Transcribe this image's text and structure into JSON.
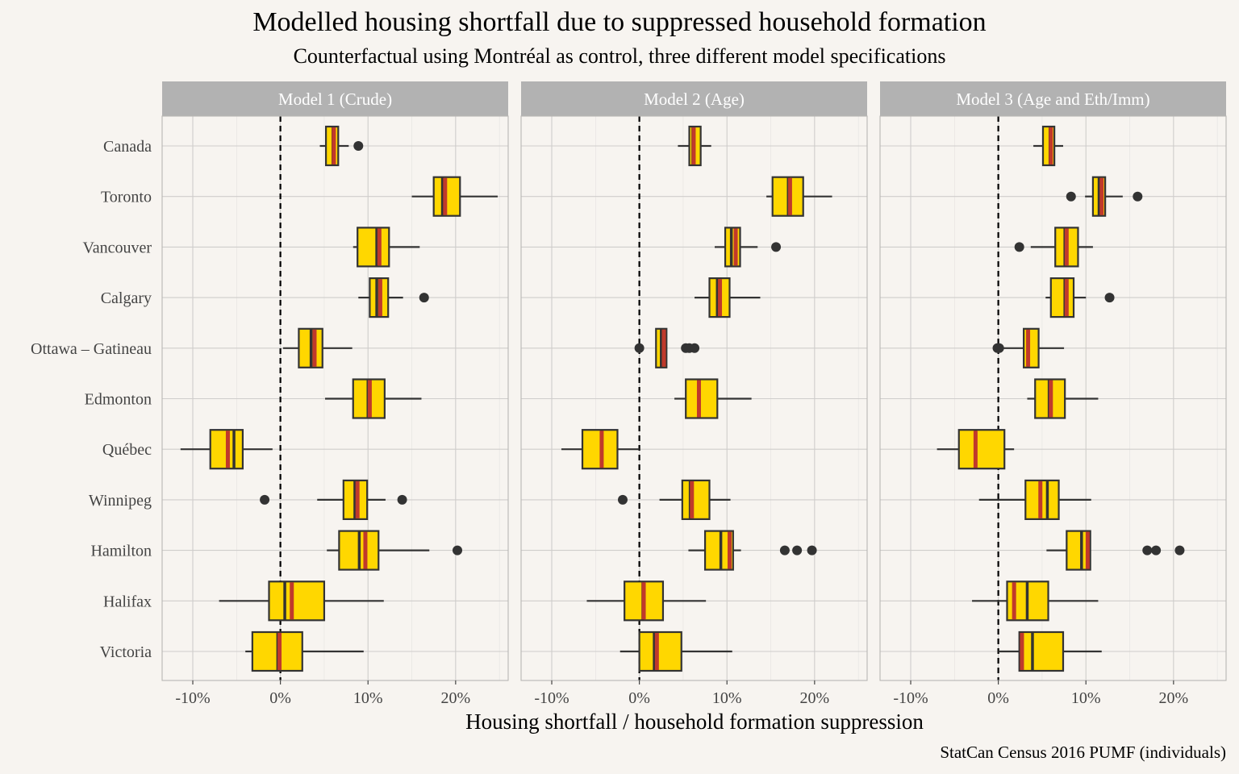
{
  "chart_data": {
    "type": "boxplot",
    "title": "Modelled housing shortfall due to suppressed household formation",
    "subtitle": "Counterfactual using Montréal as control, three different model specifications",
    "xlabel": "Housing shortfall / household formation suppression",
    "caption": "StatCan Census 2016 PUMF (individuals)",
    "xlim": [
      -13.5,
      26
    ],
    "x_ticks": [
      -10,
      0,
      10,
      20
    ],
    "x_tick_labels": [
      "-10%",
      "0%",
      "10%",
      "20%"
    ],
    "reference_line": 0,
    "box_fill": "#ffd700",
    "estimate_color": "#c0392b",
    "categories": [
      "Canada",
      "Toronto",
      "Vancouver",
      "Calgary",
      "Ottawa – Gatineau",
      "Edmonton",
      "Québec",
      "Winnipeg",
      "Hamilton",
      "Halifax",
      "Victoria"
    ],
    "panels": [
      {
        "name": "Model 1 (Crude)",
        "boxes": [
          {
            "min": 4.5,
            "q1": 5.2,
            "median": 6.0,
            "q3": 6.6,
            "max": 7.8,
            "estimate": 6.1,
            "outliers": [
              8.9
            ]
          },
          {
            "min": 15.0,
            "q1": 17.5,
            "median": 18.5,
            "q3": 20.5,
            "max": 24.8,
            "estimate": 18.8,
            "outliers": []
          },
          {
            "min": 8.3,
            "q1": 8.8,
            "median": 11.0,
            "q3": 12.4,
            "max": 15.9,
            "estimate": 11.3,
            "outliers": []
          },
          {
            "min": 8.9,
            "q1": 10.2,
            "median": 11.0,
            "q3": 12.3,
            "max": 14.0,
            "estimate": 11.4,
            "outliers": [
              16.4
            ]
          },
          {
            "min": 0.3,
            "q1": 2.1,
            "median": 3.5,
            "q3": 4.8,
            "max": 8.2,
            "estimate": 3.9,
            "outliers": []
          },
          {
            "min": 5.1,
            "q1": 8.3,
            "median": 10.0,
            "q3": 11.9,
            "max": 16.1,
            "estimate": 10.2,
            "outliers": []
          },
          {
            "min": -11.4,
            "q1": -8.0,
            "median": -5.3,
            "q3": -4.3,
            "max": -0.9,
            "estimate": -6.0,
            "outliers": []
          },
          {
            "min": 4.2,
            "q1": 7.2,
            "median": 8.5,
            "q3": 9.9,
            "max": 12.0,
            "estimate": 8.8,
            "outliers": [
              -1.8,
              13.9
            ]
          },
          {
            "min": 5.3,
            "q1": 6.7,
            "median": 9.0,
            "q3": 11.2,
            "max": 17.0,
            "estimate": 9.7,
            "outliers": [
              20.2
            ]
          },
          {
            "min": -7.0,
            "q1": -1.3,
            "median": 0.5,
            "q3": 5.0,
            "max": 11.8,
            "estimate": 1.3,
            "outliers": []
          },
          {
            "min": -4.0,
            "q1": -3.2,
            "median": -0.3,
            "q3": 2.5,
            "max": 9.5,
            "estimate": -0.1,
            "outliers": []
          }
        ]
      },
      {
        "name": "Model 2 (Age)",
        "boxes": [
          {
            "min": 4.4,
            "q1": 5.7,
            "median": 6.1,
            "q3": 7.0,
            "max": 8.2,
            "estimate": 6.2,
            "outliers": []
          },
          {
            "min": 14.5,
            "q1": 15.2,
            "median": 17.0,
            "q3": 18.7,
            "max": 22.0,
            "estimate": 17.2,
            "outliers": []
          },
          {
            "min": 8.6,
            "q1": 9.8,
            "median": 10.5,
            "q3": 11.5,
            "max": 13.5,
            "estimate": 11.0,
            "outliers": [
              15.6
            ]
          },
          {
            "min": 6.3,
            "q1": 8.0,
            "median": 8.9,
            "q3": 10.3,
            "max": 13.8,
            "estimate": 9.2,
            "outliers": []
          },
          {
            "min": 1.9,
            "q1": 1.9,
            "median": 2.5,
            "q3": 3.1,
            "max": 3.1,
            "estimate": 2.8,
            "outliers": [
              0.0,
              5.3,
              5.7,
              6.3
            ]
          },
          {
            "min": 4.0,
            "q1": 5.3,
            "median": 6.8,
            "q3": 8.9,
            "max": 12.8,
            "estimate": 6.8,
            "outliers": []
          },
          {
            "min": -8.9,
            "q1": -6.5,
            "median": -4.3,
            "q3": -2.5,
            "max": 0.0,
            "estimate": -4.3,
            "outliers": []
          },
          {
            "min": 2.3,
            "q1": 4.9,
            "median": 5.8,
            "q3": 8.0,
            "max": 10.4,
            "estimate": 6.0,
            "outliers": [
              -1.9
            ]
          },
          {
            "min": 5.6,
            "q1": 7.5,
            "median": 9.3,
            "q3": 10.7,
            "max": 11.6,
            "estimate": 10.3,
            "outliers": [
              16.6,
              18.0,
              19.7
            ]
          },
          {
            "min": -6.0,
            "q1": -1.7,
            "median": 0.4,
            "q3": 2.7,
            "max": 7.6,
            "estimate": 0.5,
            "outliers": []
          },
          {
            "min": -2.2,
            "q1": 0.0,
            "median": 1.7,
            "q3": 4.8,
            "max": 10.6,
            "estimate": 2.0,
            "outliers": []
          }
        ]
      },
      {
        "name": "Model 3 (Age and Eth/Imm)",
        "boxes": [
          {
            "min": 4.0,
            "q1": 5.1,
            "median": 5.9,
            "q3": 6.4,
            "max": 7.4,
            "estimate": 6.0,
            "outliers": []
          },
          {
            "min": 9.9,
            "q1": 10.8,
            "median": 11.5,
            "q3": 12.2,
            "max": 14.2,
            "estimate": 11.8,
            "outliers": [
              8.3,
              15.9
            ]
          },
          {
            "min": 3.7,
            "q1": 6.5,
            "median": 7.6,
            "q3": 9.1,
            "max": 10.8,
            "estimate": 7.8,
            "outliers": [
              2.4
            ]
          },
          {
            "min": 5.4,
            "q1": 6.0,
            "median": 7.6,
            "q3": 8.6,
            "max": 10.0,
            "estimate": 7.8,
            "outliers": [
              12.7
            ]
          },
          {
            "min": 0.2,
            "q1": 2.9,
            "median": 3.4,
            "q3": 4.6,
            "max": 7.5,
            "estimate": 3.4,
            "outliers": [
              -0.1,
              0.1
            ]
          },
          {
            "min": 3.3,
            "q1": 4.2,
            "median": 5.8,
            "q3": 7.6,
            "max": 11.4,
            "estimate": 6.0,
            "outliers": []
          },
          {
            "min": -7.0,
            "q1": -4.5,
            "median": -2.6,
            "q3": 0.7,
            "max": 1.8,
            "estimate": -2.6,
            "outliers": []
          },
          {
            "min": -2.2,
            "q1": 3.1,
            "median": 5.6,
            "q3": 6.9,
            "max": 10.6,
            "estimate": 4.8,
            "outliers": []
          },
          {
            "min": 5.5,
            "q1": 7.8,
            "median": 9.5,
            "q3": 10.5,
            "max": 10.5,
            "estimate": 10.2,
            "outliers": [
              17.0,
              18.0,
              20.7
            ]
          },
          {
            "min": -3.0,
            "q1": 1.0,
            "median": 3.3,
            "q3": 5.7,
            "max": 11.4,
            "estimate": 1.8,
            "outliers": []
          },
          {
            "min": 0.0,
            "q1": 2.4,
            "median": 3.9,
            "q3": 7.4,
            "max": 11.8,
            "estimate": 2.7,
            "outliers": []
          }
        ]
      }
    ]
  }
}
